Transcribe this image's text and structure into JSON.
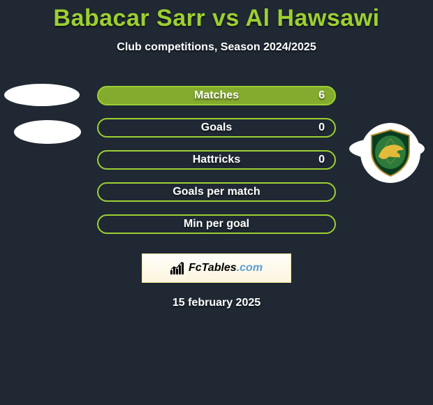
{
  "title": "Babacar Sarr vs Al Hawsawi",
  "subtitle": "Club competitions, Season 2024/2025",
  "date_label": "15 february 2025",
  "fctables": {
    "label": "FcTables",
    "suffix": ".com"
  },
  "colors": {
    "accent": "#9ccf31",
    "bg": "#1f2833",
    "pill_border_a": "#9dcf33",
    "pill_bg_a": "#84ab2d",
    "pill_border_b": "#9dcf33",
    "crest_dark": "#083d1f",
    "crest_mid": "#2d7a3a",
    "crest_gold": "#e3bb3a",
    "crest_outline": "#b8902d"
  },
  "stats": [
    {
      "id": "matches",
      "label": "Matches",
      "right_value": "6",
      "filled": true
    },
    {
      "id": "goals",
      "label": "Goals",
      "right_value": "0",
      "filled": false
    },
    {
      "id": "hattricks",
      "label": "Hattricks",
      "right_value": "0",
      "filled": false
    },
    {
      "id": "gpm",
      "label": "Goals per match",
      "right_value": "",
      "filled": false
    },
    {
      "id": "mpg",
      "label": "Min per goal",
      "right_value": "",
      "filled": false
    }
  ]
}
